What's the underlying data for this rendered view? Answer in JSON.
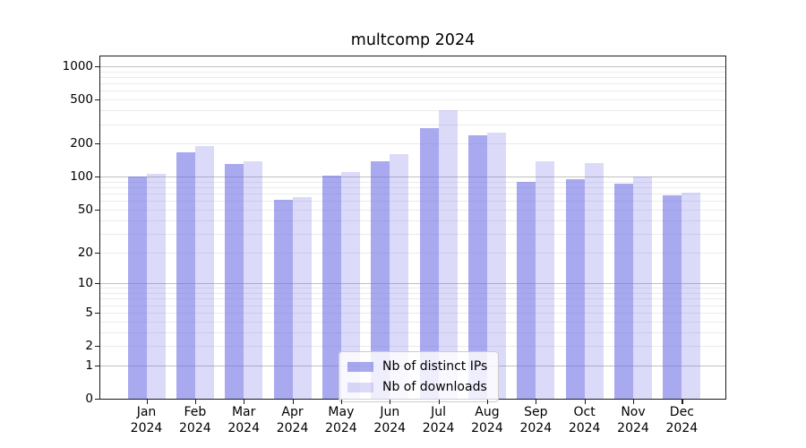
{
  "title": "multcomp 2024",
  "legend": {
    "items": [
      {
        "label": "Nb of distinct IPs",
        "swatch_color": "rgba(106,106,228,0.58)"
      },
      {
        "label": "Nb of downloads",
        "swatch_color": "rgba(106,106,228,0.24)"
      }
    ]
  },
  "colors": {
    "bar_distinct_ips": "rgba(106,106,228,0.58)",
    "bar_downloads": "rgba(106,106,228,0.24)",
    "grid_major": "#c0c0c0",
    "grid_minor": "#ebebeb",
    "axis": "#1a1a1a"
  },
  "chart_data": {
    "type": "bar",
    "title": "multcomp 2024",
    "categories": [
      "Jan 2024",
      "Feb 2024",
      "Mar 2024",
      "Apr 2024",
      "May 2024",
      "Jun 2024",
      "Jul 2024",
      "Aug 2024",
      "Sep 2024",
      "Oct 2024",
      "Nov 2024",
      "Dec 2024"
    ],
    "series": [
      {
        "name": "Nb of distinct IPs",
        "values": [
          100,
          167,
          131,
          62,
          103,
          137,
          278,
          237,
          89,
          94,
          87,
          67
        ]
      },
      {
        "name": "Nb of downloads",
        "values": [
          106,
          191,
          139,
          65,
          110,
          160,
          400,
          250,
          139,
          132,
          100,
          71
        ]
      }
    ],
    "xlabel": "",
    "ylabel": "",
    "yscale": "log1p",
    "ylim": [
      0,
      1228
    ],
    "yticks": [
      0,
      1,
      2,
      5,
      10,
      20,
      50,
      100,
      200,
      500,
      1000
    ],
    "grid": true,
    "legend_position": "lower center"
  }
}
